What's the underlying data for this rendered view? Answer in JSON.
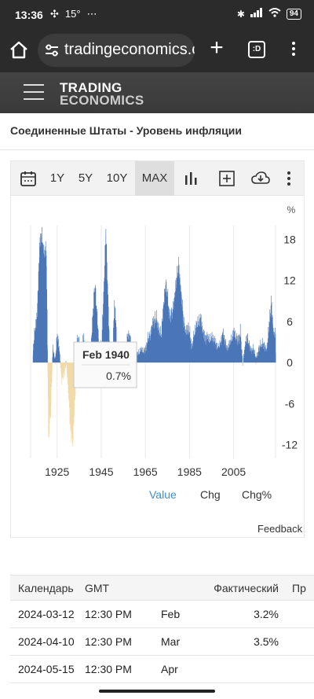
{
  "status_bar": {
    "time": "13:36",
    "temp": "15°",
    "battery": "94"
  },
  "browser": {
    "url": "tradingeconomics.com",
    "tabs_label": ":D"
  },
  "site": {
    "logo_line1": "TRADING",
    "logo_line2": "ECONOMICS"
  },
  "page": {
    "title": "Соединенные Штаты - Уровень инфляции"
  },
  "toolbar": {
    "ranges": [
      "1Y",
      "5Y",
      "10Y",
      "MAX"
    ],
    "active": "MAX"
  },
  "chart_data": {
    "type": "bar",
    "unit": "%",
    "x_ticks": [
      "1925",
      "1945",
      "1965",
      "1985",
      "2005"
    ],
    "y_ticks": [
      "18",
      "12",
      "6",
      "0",
      "-6",
      "-12"
    ],
    "xlim": [
      1913,
      2024
    ],
    "ylim": [
      -14,
      20
    ],
    "points": [
      [
        1914,
        1.5
      ],
      [
        1916,
        7
      ],
      [
        1917,
        17
      ],
      [
        1918,
        18
      ],
      [
        1919,
        15
      ],
      [
        1920,
        16
      ],
      [
        1921,
        -10
      ],
      [
        1922,
        -6
      ],
      [
        1923,
        2
      ],
      [
        1924,
        0
      ],
      [
        1925,
        3.5
      ],
      [
        1926,
        1
      ],
      [
        1927,
        -2
      ],
      [
        1928,
        -1.5
      ],
      [
        1929,
        0
      ],
      [
        1930,
        -3
      ],
      [
        1931,
        -9
      ],
      [
        1932,
        -10.5
      ],
      [
        1933,
        -5
      ],
      [
        1934,
        3
      ],
      [
        1935,
        2.5
      ],
      [
        1936,
        1
      ],
      [
        1937,
        3.5
      ],
      [
        1938,
        -2
      ],
      [
        1939,
        -1
      ],
      [
        1940,
        0.7
      ],
      [
        1941,
        5
      ],
      [
        1942,
        11
      ],
      [
        1943,
        6
      ],
      [
        1944,
        2
      ],
      [
        1945,
        2.3
      ],
      [
        1946,
        8.5
      ],
      [
        1947,
        18.5
      ],
      [
        1948,
        8
      ],
      [
        1949,
        -1
      ],
      [
        1950,
        1.3
      ],
      [
        1951,
        7.9
      ],
      [
        1952,
        1.9
      ],
      [
        1953,
        0.8
      ],
      [
        1954,
        0.7
      ],
      [
        1955,
        -0.4
      ],
      [
        1956,
        1.5
      ],
      [
        1957,
        3.3
      ],
      [
        1958,
        2.8
      ],
      [
        1959,
        0.7
      ],
      [
        1960,
        1.7
      ],
      [
        1961,
        1
      ],
      [
        1962,
        1
      ],
      [
        1963,
        1.3
      ],
      [
        1964,
        1.3
      ],
      [
        1965,
        1.6
      ],
      [
        1966,
        2.9
      ],
      [
        1967,
        3.1
      ],
      [
        1968,
        4.2
      ],
      [
        1969,
        5.5
      ],
      [
        1970,
        5.7
      ],
      [
        1971,
        4.4
      ],
      [
        1972,
        3.2
      ],
      [
        1973,
        6.2
      ],
      [
        1974,
        11
      ],
      [
        1975,
        9.1
      ],
      [
        1976,
        5.8
      ],
      [
        1977,
        6.5
      ],
      [
        1978,
        7.6
      ],
      [
        1979,
        11.3
      ],
      [
        1980,
        13.5
      ],
      [
        1981,
        10.3
      ],
      [
        1982,
        6.1
      ],
      [
        1983,
        3.2
      ],
      [
        1984,
        4.3
      ],
      [
        1985,
        3.6
      ],
      [
        1986,
        1.9
      ],
      [
        1987,
        3.6
      ],
      [
        1988,
        4.1
      ],
      [
        1989,
        4.8
      ],
      [
        1990,
        5.4
      ],
      [
        1991,
        4.2
      ],
      [
        1992,
        3
      ],
      [
        1993,
        3
      ],
      [
        1994,
        2.6
      ],
      [
        1995,
        2.8
      ],
      [
        1996,
        3
      ],
      [
        1997,
        2.3
      ],
      [
        1998,
        1.6
      ],
      [
        1999,
        2.2
      ],
      [
        2000,
        3.4
      ],
      [
        2001,
        2.8
      ],
      [
        2002,
        1.6
      ],
      [
        2003,
        2.3
      ],
      [
        2004,
        2.7
      ],
      [
        2005,
        3.4
      ],
      [
        2006,
        3.2
      ],
      [
        2007,
        2.8
      ],
      [
        2008,
        3.8
      ],
      [
        2009,
        -0.4
      ],
      [
        2010,
        1.6
      ],
      [
        2011,
        3.2
      ],
      [
        2012,
        2.1
      ],
      [
        2013,
        1.5
      ],
      [
        2014,
        1.6
      ],
      [
        2015,
        0.1
      ],
      [
        2016,
        1.3
      ],
      [
        2017,
        2.1
      ],
      [
        2018,
        2.4
      ],
      [
        2019,
        1.8
      ],
      [
        2020,
        1.2
      ],
      [
        2021,
        4.7
      ],
      [
        2022,
        8
      ],
      [
        2023,
        4.1
      ],
      [
        2024,
        3.2
      ]
    ],
    "positive_color": "#4a76b8",
    "negative_color": "#f1d9a8",
    "tooltip": {
      "date": "Feb 1940",
      "value": "0.7%"
    }
  },
  "legend": {
    "items": [
      "Value",
      "Chg",
      "Chg%"
    ],
    "active": "Value",
    "feedback": "Feedback"
  },
  "calendar": {
    "headers": [
      "Календарь",
      "GMT",
      "",
      "Фактический",
      "Пр"
    ],
    "rows": [
      {
        "date": "2024-03-12",
        "time": "12:30 PM",
        "ref": "Feb",
        "actual": "3.2%"
      },
      {
        "date": "2024-04-10",
        "time": "12:30 PM",
        "ref": "Mar",
        "actual": "3.5%"
      },
      {
        "date": "2024-05-15",
        "time": "12:30 PM",
        "ref": "Apr",
        "actual": ""
      }
    ]
  }
}
